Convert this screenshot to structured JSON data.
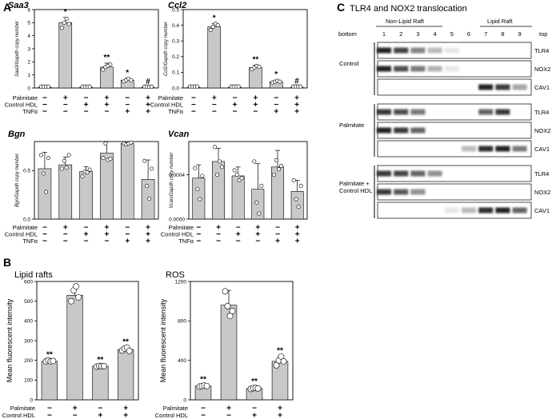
{
  "panels": {
    "A": {
      "letter": "A",
      "conditions": [
        "Palmitate",
        "Control HDL",
        "TNFα"
      ],
      "signs": [
        [
          "−",
          "+",
          "−",
          "+",
          "−",
          "+"
        ],
        [
          "−",
          "−",
          "+",
          "+",
          "−",
          "+"
        ],
        [
          "−",
          "−",
          "−",
          "−",
          "+",
          "+"
        ]
      ]
    },
    "B": {
      "letter": "B",
      "conditions": [
        "Palmitate",
        "Control HDL"
      ],
      "signs": [
        [
          "−",
          "+",
          "−",
          "+"
        ],
        [
          "−",
          "−",
          "+",
          "+"
        ]
      ]
    },
    "C": {
      "letter": "C",
      "title": "TLR4 and NOX2 translocation",
      "bottom_label": "bottom",
      "top_label": "top",
      "nonraft_label": "Non-Lipid Raft",
      "raft_label": "Lipid Raft",
      "fractions": [
        "1",
        "2",
        "3",
        "4",
        "5",
        "6",
        "7",
        "8",
        "9"
      ],
      "groups": [
        {
          "name": "Control",
          "rows": [
            "TLR4",
            "NOX2",
            "CAV1"
          ]
        },
        {
          "name": "Palmitate",
          "rows": [
            "TLR4",
            "NOX2",
            "CAV1"
          ]
        },
        {
          "name": "Palmitate + Control HDL",
          "rows": [
            "TLR4",
            "NOX2",
            "CAV1"
          ]
        }
      ]
    }
  },
  "chart_data": [
    {
      "id": "saa3",
      "type": "bar",
      "gene": "Saa3",
      "ylabel": "Saa3/Gapdh copy number",
      "ylim": [
        0,
        6
      ],
      "yticks": [
        "0",
        "1",
        "2",
        "3",
        "4",
        "5",
        "6"
      ],
      "values": [
        0.05,
        5.0,
        0.05,
        1.6,
        0.6,
        0.05
      ],
      "errors": [
        0.02,
        0.4,
        0.02,
        0.3,
        0.15,
        0.02
      ],
      "points": [
        [
          0.05,
          0.05,
          0.05,
          0.05
        ],
        [
          4.6,
          5.0,
          5.3,
          4.9
        ],
        [
          0.05,
          0.05,
          0.05,
          0.05
        ],
        [
          1.4,
          1.6,
          1.7,
          1.8
        ],
        [
          0.5,
          0.6,
          0.7,
          0.6
        ],
        [
          0.05,
          0.05,
          0.05,
          0.05
        ]
      ],
      "annotations": [
        "",
        "*",
        "",
        "**",
        "*",
        "#"
      ]
    },
    {
      "id": "ccl2",
      "type": "bar",
      "gene": "Ccl2",
      "ylabel": "Ccl2/Gapdh copy number",
      "ylim": [
        0,
        0.5
      ],
      "yticks": [
        "0.0",
        "0.1",
        "0.2",
        "0.3",
        "0.4",
        "0.5"
      ],
      "values": [
        0.005,
        0.39,
        0.005,
        0.13,
        0.04,
        0.005
      ],
      "errors": [
        0.002,
        0.02,
        0.002,
        0.015,
        0.01,
        0.002
      ],
      "points": [
        [
          0.005,
          0.005,
          0.005,
          0.005
        ],
        [
          0.37,
          0.39,
          0.41,
          0.4
        ],
        [
          0.005,
          0.005,
          0.005,
          0.005
        ],
        [
          0.12,
          0.13,
          0.14,
          0.135
        ],
        [
          0.035,
          0.04,
          0.045,
          0.04
        ],
        [
          0.005,
          0.005,
          0.005,
          0.005
        ]
      ],
      "annotations": [
        "",
        "*",
        "",
        "**",
        "*",
        "#"
      ]
    },
    {
      "id": "bgn",
      "type": "bar",
      "gene": "Bgn",
      "ylabel": "Bgn/Gapdh copy number",
      "ylim": [
        0,
        0.8
      ],
      "yticks": [
        "0.0",
        "0.5"
      ],
      "values": [
        0.52,
        0.56,
        0.49,
        0.68,
        0.78,
        0.41
      ],
      "errors": [
        0.17,
        0.08,
        0.05,
        0.13,
        0.01,
        0.2
      ],
      "points": [
        [
          0.66,
          0.47,
          0.28,
          0.63
        ],
        [
          0.52,
          0.6,
          0.53,
          0.66
        ],
        [
          0.44,
          0.49,
          0.48,
          0.51
        ],
        [
          0.63,
          0.78,
          0.61,
          0.62
        ],
        [
          0.78,
          0.77,
          0.78,
          0.79
        ],
        [
          0.6,
          0.34,
          0.21,
          0.52
        ]
      ],
      "annotations": [
        "",
        "",
        "",
        "",
        "",
        ""
      ]
    },
    {
      "id": "vcan",
      "type": "bar",
      "gene": "Vcan",
      "ylabel": "Vcan/Gapdh copy number",
      "ylim": [
        0,
        0.0007
      ],
      "yticks": [
        "0.0000",
        "0.0004"
      ],
      "values": [
        0.00037,
        0.00052,
        0.00039,
        0.00027,
        0.00047,
        0.00025
      ],
      "errors": [
        0.00012,
        0.00012,
        8e-05,
        0.00023,
        0.00015,
        0.0001
      ],
      "points": [
        [
          0.00046,
          0.00027,
          0.00018,
          0.00039
        ],
        [
          0.00065,
          0.0004,
          0.00052,
          0.00047
        ],
        [
          0.00044,
          0.0004,
          0.00035,
          0.00037
        ],
        [
          0.00052,
          0.00015,
          5e-05,
          0.0003
        ],
        [
          0.0004,
          0.00053,
          0.00045,
          0.00048
        ],
        [
          0.00035,
          0.00018,
          0.00011,
          0.0003
        ]
      ],
      "annotations": [
        "",
        "",
        "",
        "",
        "",
        ""
      ]
    },
    {
      "id": "rafts",
      "type": "bar",
      "title": "Lipid rafts",
      "ylabel": "Mean fluorescent intensity",
      "ylim": [
        0,
        600
      ],
      "yticks": [
        "0",
        "100",
        "200",
        "300",
        "400",
        "500",
        "600"
      ],
      "values": [
        195,
        530,
        170,
        255
      ],
      "errors": [
        5,
        30,
        5,
        10
      ],
      "points": [
        [
          195,
          200,
          195,
          197
        ],
        [
          500,
          555,
          575,
          520
        ],
        [
          168,
          172,
          170,
          171
        ],
        [
          250,
          260,
          265,
          248
        ]
      ],
      "annotations": [
        "**",
        "",
        "**",
        "**"
      ]
    },
    {
      "id": "ros",
      "type": "bar",
      "title": "ROS",
      "ylabel": "Mean fluorescent intensity",
      "ylim": [
        0,
        1200
      ],
      "yticks": [
        "0",
        "400",
        "800",
        "1200"
      ],
      "values": [
        140,
        960,
        115,
        390
      ],
      "errors": [
        10,
        150,
        15,
        50
      ],
      "points": [
        [
          135,
          140,
          145,
          140
        ],
        [
          1100,
          950,
          850,
          900
        ],
        [
          110,
          118,
          120,
          115
        ],
        [
          350,
          400,
          440,
          390
        ]
      ],
      "annotations": [
        "**",
        "",
        "**",
        "**"
      ]
    }
  ]
}
